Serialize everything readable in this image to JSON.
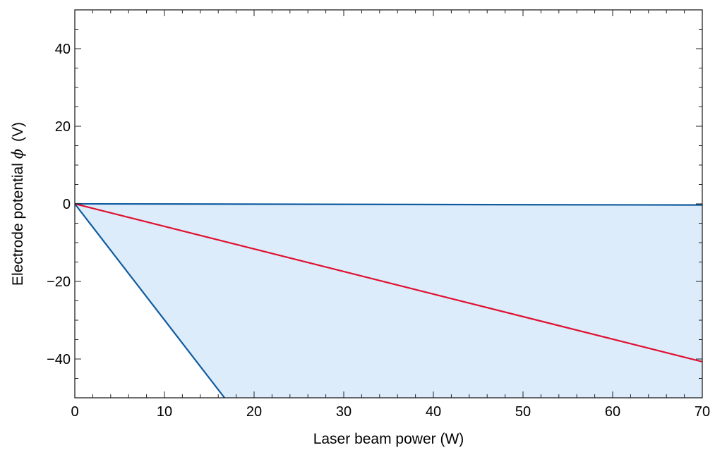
{
  "chart_data": {
    "type": "line",
    "title": "",
    "xlabel": "Laser beam power (W)",
    "ylabel_text": "Electrode potential ",
    "ylabel_symbol": "ϕ",
    "ylabel_unit": "(V)",
    "xlim": [
      0,
      70
    ],
    "ylim": [
      -50,
      50
    ],
    "xticks": [
      0,
      10,
      20,
      30,
      40,
      50,
      60,
      70
    ],
    "xtick_labels": [
      "0",
      "10",
      "20",
      "30",
      "40",
      "50",
      "60",
      "70"
    ],
    "yticks": [
      -40,
      -20,
      0,
      20,
      40
    ],
    "ytick_labels": [
      "−40",
      "−20",
      "0",
      "20",
      "40"
    ],
    "grid": false,
    "colors": {
      "band_fill": "#dcecfb",
      "bound": "#0f5b9f",
      "middle": "#e01030",
      "frame": "#222222"
    },
    "series": [
      {
        "role": "upper-bound",
        "color": "#0f5b9f",
        "x": [
          0,
          70
        ],
        "y": [
          0,
          -0.3
        ]
      },
      {
        "role": "middle",
        "color": "#e01030",
        "x": [
          0,
          70
        ],
        "y": [
          0,
          -40.7
        ]
      },
      {
        "role": "lower-bound",
        "color": "#0f5b9f",
        "x": [
          0,
          16.7
        ],
        "y": [
          0,
          -50
        ]
      }
    ],
    "fill_between": {
      "upper": "upper-bound",
      "lower": "lower-bound",
      "color": "#dcecfb"
    }
  }
}
